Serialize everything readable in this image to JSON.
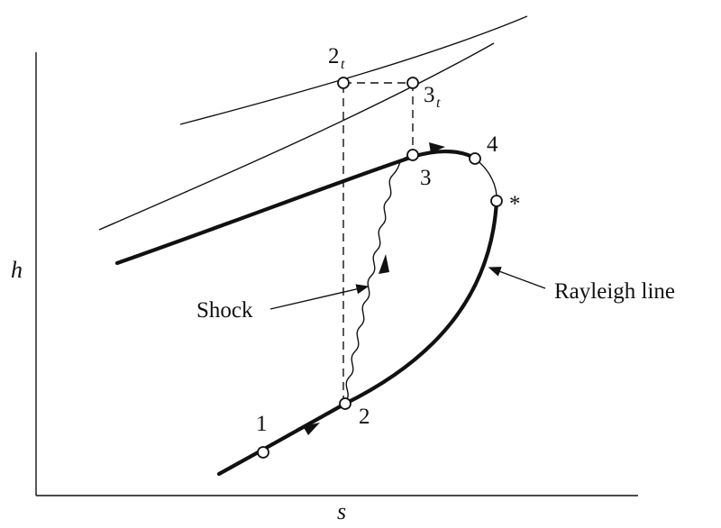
{
  "axes": {
    "x_label": "s",
    "y_label": "h"
  },
  "points": {
    "p1": "1",
    "p2": "2",
    "p3": "3",
    "p4": "4",
    "star": "*",
    "p2t_main": "2",
    "p2t_sub": "t",
    "p3t_main": "3",
    "p3t_sub": "t"
  },
  "annotations": {
    "shock": "Shock",
    "rayleigh": "Rayleigh line"
  }
}
